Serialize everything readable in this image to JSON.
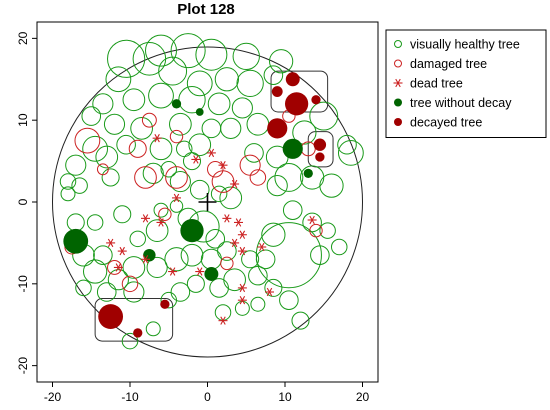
{
  "chart_data": {
    "type": "scatter",
    "title": "Plot 128",
    "xlabel": "",
    "ylabel": "",
    "xlim": [
      -22,
      22
    ],
    "ylim": [
      -22,
      22
    ],
    "x_ticks": [
      -20,
      -10,
      0,
      10,
      20
    ],
    "y_ticks": [
      -20,
      -10,
      0,
      10,
      20
    ],
    "x_tick_labels": [
      "-20",
      "-10",
      "0",
      "10",
      "20"
    ],
    "y_tick_labels": [
      "-20",
      "-10",
      "0",
      "10",
      "20"
    ],
    "plot_boundary": {
      "cx": 0,
      "cy": 0,
      "r": 20
    },
    "center_marker": {
      "x": 0,
      "y": 0,
      "symbol": "+"
    },
    "legend": {
      "placement": "outside-top-right",
      "entries": [
        {
          "key": "healthy",
          "label": "visually healthy tree",
          "marker": "open-circle",
          "color": "#1a9a1a"
        },
        {
          "key": "damaged",
          "label": "damaged tree",
          "marker": "open-circle",
          "color": "#cc2222"
        },
        {
          "key": "dead",
          "label": "dead tree",
          "marker": "asterisk",
          "color": "#cc2222"
        },
        {
          "key": "no_decay",
          "label": "tree without decay",
          "marker": "filled-circle",
          "color": "#006400"
        },
        {
          "key": "decayed",
          "label": "decayed tree",
          "marker": "filled-circle",
          "color": "#a00000"
        }
      ]
    },
    "highlight_boxes": [
      {
        "x0": 8.2,
        "x1": 15.5,
        "y0": 11.0,
        "y1": 16.0
      },
      {
        "x0": 13.0,
        "x1": 16.2,
        "y0": 4.3,
        "y1": 8.6
      },
      {
        "x0": -14.5,
        "x1": -4.5,
        "y0": -17.0,
        "y1": -11.8
      }
    ],
    "series": [
      {
        "key": "healthy",
        "points": [
          [
            -10.5,
            17.5,
            2.4
          ],
          [
            -7.5,
            17.5,
            2.1
          ],
          [
            -6,
            18.5,
            2.0
          ],
          [
            -2.5,
            18.5,
            2.2
          ],
          [
            0.5,
            18.0,
            2.0
          ],
          [
            5,
            17.8,
            1.7
          ],
          [
            9.5,
            17.2,
            1.5
          ],
          [
            -11.5,
            15.0,
            1.6
          ],
          [
            -4.5,
            16.0,
            1.8
          ],
          [
            -1,
            14.5,
            1.6
          ],
          [
            2.5,
            15.0,
            1.5
          ],
          [
            5.5,
            14.5,
            1.7
          ],
          [
            8.5,
            15.5,
            1.2
          ],
          [
            -13.5,
            12.0,
            1.3
          ],
          [
            -9.5,
            12.5,
            1.4
          ],
          [
            -6,
            13.0,
            1.6
          ],
          [
            -2,
            12.5,
            1.7
          ],
          [
            1.5,
            12.0,
            1.4
          ],
          [
            4.5,
            11.5,
            1.3
          ],
          [
            6.5,
            9.5,
            1.4
          ],
          [
            -15,
            10.5,
            1.2
          ],
          [
            -12,
            9.5,
            1.3
          ],
          [
            -8.5,
            9.0,
            1.4
          ],
          [
            -3.5,
            9.5,
            1.4
          ],
          [
            0.5,
            9.0,
            1.2
          ],
          [
            3,
            9.0,
            1.3
          ],
          [
            -14.5,
            6.5,
            1.6
          ],
          [
            -10.5,
            7.0,
            1.2
          ],
          [
            -6,
            6.5,
            1.4
          ],
          [
            -3,
            6.5,
            1.0
          ],
          [
            -1,
            7.0,
            1.4
          ],
          [
            6,
            6.0,
            1.2
          ],
          [
            9,
            5.5,
            1.4
          ],
          [
            12.5,
            8.5,
            1.5
          ],
          [
            15,
            10.5,
            1.8
          ],
          [
            18,
            7.0,
            1.2
          ],
          [
            18.5,
            6.0,
            1.6
          ],
          [
            -17,
            4.5,
            1.3
          ],
          [
            -13,
            5.5,
            1.4
          ],
          [
            -16.5,
            2.0,
            1.0
          ],
          [
            -18,
            2.5,
            1.0
          ],
          [
            -18,
            1.0,
            0.9
          ],
          [
            -12.5,
            3.0,
            1.1
          ],
          [
            -7,
            3.5,
            1.3
          ],
          [
            -5,
            4.0,
            1.0
          ],
          [
            -3.5,
            2.5,
            1.3
          ],
          [
            -1,
            1.5,
            1.2
          ],
          [
            1.5,
            1.0,
            1.0
          ],
          [
            3,
            0.5,
            1.4
          ],
          [
            9,
            2.0,
            1.3
          ],
          [
            10.5,
            3.0,
            1.8
          ],
          [
            13.5,
            3.0,
            1.5
          ],
          [
            16,
            2.0,
            1.5
          ],
          [
            -17,
            -2.5,
            1.1
          ],
          [
            -14.5,
            -2.5,
            1.0
          ],
          [
            -11,
            -1.5,
            1.1
          ],
          [
            -6,
            -1.0,
            0.9
          ],
          [
            -4,
            -0.5,
            0.8
          ],
          [
            -2.5,
            -2.0,
            1.3
          ],
          [
            -0.5,
            -3.0,
            2.0
          ],
          [
            1,
            -4.5,
            1.2
          ],
          [
            8.5,
            -4.0,
            1.5
          ],
          [
            11,
            -1.0,
            1.2
          ],
          [
            13.5,
            -2.5,
            1.2
          ],
          [
            10.5,
            -6.5,
            4.2
          ],
          [
            14.5,
            -6.5,
            1.2
          ],
          [
            15.5,
            -3.5,
            1.0
          ],
          [
            17,
            -5.5,
            1.0
          ],
          [
            -16,
            -6.5,
            1.4
          ],
          [
            -13.5,
            -6.5,
            1.2
          ],
          [
            -14.5,
            -8.5,
            1.5
          ],
          [
            -11.5,
            -9.5,
            1.3
          ],
          [
            -9.5,
            -8.0,
            1.4
          ],
          [
            -6.5,
            -8.0,
            1.3
          ],
          [
            -4,
            -7.0,
            1.5
          ],
          [
            -2,
            -6.5,
            1.4
          ],
          [
            0.5,
            -7.0,
            1.3
          ],
          [
            2.5,
            -6.0,
            1.2
          ],
          [
            5.5,
            -7.0,
            1.1
          ],
          [
            7.5,
            -7.0,
            1.2
          ],
          [
            -16,
            -10.5,
            1.0
          ],
          [
            -13,
            -11.0,
            1.2
          ],
          [
            -9.5,
            -11.0,
            1.3
          ],
          [
            -5,
            -12.0,
            1.0
          ],
          [
            -3.5,
            -11.0,
            1.2
          ],
          [
            -1.5,
            -10.0,
            1.1
          ],
          [
            1.5,
            -10.5,
            1.2
          ],
          [
            3.5,
            -9.5,
            1.4
          ],
          [
            6.5,
            -9.0,
            1.2
          ],
          [
            8.5,
            -10.5,
            1.1
          ],
          [
            10.5,
            -12.0,
            1.2
          ],
          [
            12,
            -14.5,
            1.1
          ],
          [
            -10,
            -17.0,
            1.0
          ],
          [
            -7,
            -15.5,
            0.9
          ],
          [
            2,
            -13.5,
            1.0
          ],
          [
            4.5,
            -13.0,
            0.9
          ],
          [
            6.5,
            -12.5,
            0.9
          ],
          [
            -6.5,
            -3.5,
            1.4
          ],
          [
            -9,
            -4.5,
            1.0
          ],
          [
            -2,
            5.0,
            1.1
          ]
        ]
      },
      {
        "key": "damaged",
        "points": [
          [
            -15.5,
            7.5,
            1.6
          ],
          [
            -8,
            3.0,
            1.4
          ],
          [
            -4,
            3.0,
            1.4
          ],
          [
            2,
            2.5,
            1.4
          ],
          [
            5.5,
            4.5,
            1.3
          ],
          [
            6.5,
            3.0,
            1.0
          ],
          [
            -7.5,
            10.0,
            0.9
          ],
          [
            1,
            4.0,
            1.0
          ],
          [
            -4,
            8.0,
            0.8
          ],
          [
            13,
            6.5,
            0.9
          ],
          [
            10.5,
            10.5,
            0.8
          ],
          [
            -17.5,
            -5.5,
            0.9
          ],
          [
            -10,
            -10.0,
            1.0
          ],
          [
            -12,
            -8.0,
            0.9
          ],
          [
            -5.5,
            -1.5,
            0.8
          ],
          [
            2.5,
            -7.5,
            0.8
          ],
          [
            14,
            -3.5,
            0.8
          ],
          [
            -9,
            6.5,
            1.1
          ],
          [
            -13.5,
            4.0,
            0.7
          ]
        ]
      },
      {
        "key": "dead",
        "points": [
          [
            -6.5,
            7.8
          ],
          [
            0.5,
            6.0
          ],
          [
            2,
            4.5
          ],
          [
            -1.5,
            5.2
          ],
          [
            3.5,
            2.2
          ],
          [
            -4,
            0.5
          ],
          [
            2.5,
            -2.0
          ],
          [
            4,
            -2.5
          ],
          [
            4.5,
            -4.0
          ],
          [
            3.5,
            -5.0
          ],
          [
            -8,
            -2.0
          ],
          [
            -6,
            -2.5
          ],
          [
            -11,
            -6.0
          ],
          [
            -8,
            -7.0
          ],
          [
            -11.5,
            -8.0
          ],
          [
            4.5,
            -6.0
          ],
          [
            7,
            -5.5
          ],
          [
            -4.5,
            -8.5
          ],
          [
            -1,
            -8.5
          ],
          [
            4.5,
            -10.5
          ],
          [
            8,
            -11.0
          ],
          [
            2,
            -14.5
          ],
          [
            4.5,
            -12.0
          ],
          [
            13.5,
            -2.2
          ],
          [
            -12.5,
            -5.0
          ]
        ]
      },
      {
        "key": "no_decay",
        "points": [
          [
            -17,
            -4.8,
            1.6
          ],
          [
            -2,
            -3.5,
            1.5
          ],
          [
            11,
            6.5,
            1.3
          ],
          [
            0.5,
            -8.8,
            0.9
          ],
          [
            -7.5,
            -6.5,
            0.8
          ],
          [
            -4,
            12.0,
            0.6
          ],
          [
            -1,
            11.0,
            0.5
          ],
          [
            13,
            3.5,
            0.6
          ]
        ]
      },
      {
        "key": "decayed",
        "points": [
          [
            -12.5,
            -14.0,
            1.6
          ],
          [
            9,
            9.0,
            1.3
          ],
          [
            11.5,
            12.0,
            1.5
          ],
          [
            9,
            13.5,
            0.7
          ],
          [
            11,
            15.0,
            0.9
          ],
          [
            14,
            12.5,
            0.6
          ],
          [
            14.5,
            7.0,
            0.8
          ],
          [
            14.5,
            5.5,
            0.6
          ],
          [
            -9,
            -16.0,
            0.6
          ],
          [
            -5.5,
            -12.5,
            0.6
          ]
        ]
      }
    ]
  }
}
